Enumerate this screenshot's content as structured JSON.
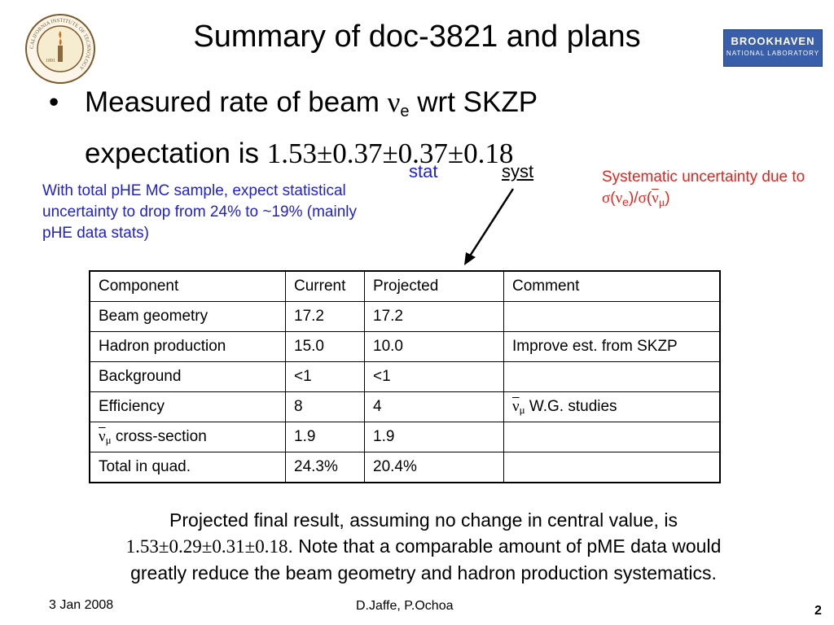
{
  "title": "Summary of doc-3821 and plans",
  "bullet": {
    "text_a": "Measured rate of  beam ",
    "nu": "ν",
    "sub_e": "e",
    "text_b": " wrt SKZP",
    "line2_a": "expectation is ",
    "line2_value": "1.53±0.37±0.37±0.18"
  },
  "labels": {
    "stat": "stat",
    "syst": "syst"
  },
  "blue_note": "With total pHE MC sample, expect statistical uncertainty to drop from 24% to ~19% (mainly pHE data stats)",
  "red_note": {
    "text": "Systematic uncertainty due to ",
    "sigma": "σ",
    "nu": "ν",
    "sub_e": "e",
    "sub_mu": "μ"
  },
  "table": {
    "header": [
      "Component",
      "Current",
      "Projected",
      "Comment"
    ],
    "rows": [
      [
        "Beam geometry",
        "17.2",
        "17.2",
        ""
      ],
      [
        "Hadron production",
        "15.0",
        "10.0",
        "Improve est. from SKZP"
      ],
      [
        "Background",
        "<1",
        "<1",
        ""
      ],
      [
        "Efficiency",
        "8",
        "4",
        "W.G. studies"
      ],
      [
        "cross-section",
        "1.9",
        "1.9",
        ""
      ],
      [
        "Total in quad.",
        "24.3%",
        "20.4%",
        ""
      ]
    ]
  },
  "bottom": {
    "line1": "Projected final result, assuming no change in central value, is",
    "value": "1.53±0.29±0.31±0.18",
    "line2": ". Note that a comparable amount of pME data would",
    "line3": "greatly reduce the beam geometry and hadron production systematics."
  },
  "footer": {
    "date": "3 Jan 2008",
    "authors": "D.Jaffe, P.Ochoa",
    "page": "2"
  },
  "logos": {
    "caltech": {
      "ring_text": "CALIFORNIA INSTITUTE OF TECHNOLOGY",
      "year": "1891",
      "color": "#7a5a2a"
    },
    "bnl": {
      "line1": "BROOKHAVEN",
      "line2": "NATIONAL LABORATORY",
      "color": "#3a5faa"
    }
  },
  "colors": {
    "blue": "#1f1fd0",
    "red": "#e3241b"
  }
}
